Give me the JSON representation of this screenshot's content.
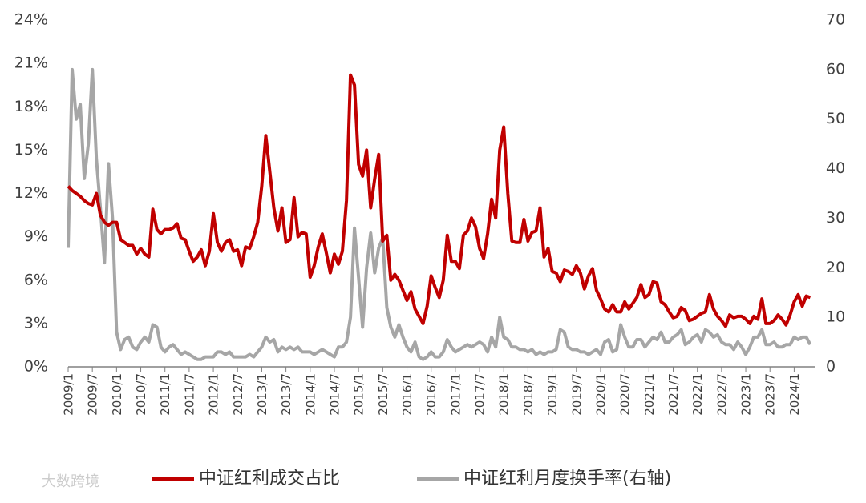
{
  "chart_data": {
    "type": "line",
    "watermark": "大数跨境",
    "categories": [
      "2009/1",
      null,
      null,
      null,
      null,
      null,
      "2009/7",
      null,
      null,
      null,
      null,
      null,
      "2010/1",
      null,
      null,
      null,
      null,
      null,
      "2010/7",
      null,
      null,
      null,
      null,
      null,
      "2011/1",
      null,
      null,
      null,
      null,
      null,
      "2011/7",
      null,
      null,
      null,
      null,
      null,
      "2012/1",
      null,
      null,
      null,
      null,
      null,
      "2012/7",
      null,
      null,
      null,
      null,
      null,
      "2013/1",
      null,
      null,
      null,
      null,
      null,
      "2013/7",
      null,
      null,
      null,
      null,
      null,
      "2014/1",
      null,
      null,
      null,
      null,
      null,
      "2014/7",
      null,
      null,
      null,
      null,
      null,
      "2015/1",
      null,
      null,
      null,
      null,
      null,
      "2015/7",
      null,
      null,
      null,
      null,
      null,
      "2016/1",
      null,
      null,
      null,
      null,
      null,
      "2016/7",
      null,
      null,
      null,
      null,
      null,
      "2017/1",
      null,
      null,
      null,
      null,
      null,
      "2017/7",
      null,
      null,
      null,
      null,
      null,
      "2018/1",
      null,
      null,
      null,
      null,
      null,
      "2018/7",
      null,
      null,
      null,
      null,
      null,
      "2019/1",
      null,
      null,
      null,
      null,
      null,
      "2019/7",
      null,
      null,
      null,
      null,
      null,
      "2020/1",
      null,
      null,
      null,
      null,
      null,
      "2020/7",
      null,
      null,
      null,
      null,
      null,
      "2021/1",
      null,
      null,
      null,
      null,
      null,
      "2021/7",
      null,
      null,
      null,
      null,
      null,
      "2022/1",
      null,
      null,
      null,
      null,
      null,
      "2022/7",
      null,
      null,
      null,
      null,
      null,
      "2023/1",
      null,
      null,
      null,
      null,
      null,
      "2023/7",
      null,
      null,
      null,
      null,
      null,
      "2024/1",
      null,
      null,
      null,
      null
    ],
    "series": [
      {
        "name": "中证红利成交占比",
        "color": "#c00000",
        "values": [
          12.5,
          12.2,
          12.0,
          11.8,
          11.5,
          11.3,
          11.2,
          12.0,
          10.5,
          10.0,
          9.8,
          10.0,
          10.0,
          8.8,
          8.6,
          8.4,
          8.4,
          7.8,
          8.2,
          7.8,
          7.6,
          10.9,
          9.5,
          9.2,
          9.5,
          9.5,
          9.6,
          9.9,
          8.9,
          8.8,
          8.0,
          7.3,
          7.6,
          8.1,
          7.0,
          8.0,
          10.6,
          8.6,
          8.0,
          8.6,
          8.8,
          8.0,
          8.1,
          7.0,
          8.3,
          8.2,
          9.0,
          10.0,
          12.5,
          16.0,
          13.5,
          11.0,
          9.4,
          11.0,
          8.6,
          8.8,
          11.7,
          9.0,
          9.3,
          9.2,
          6.2,
          7.0,
          8.3,
          9.2,
          7.9,
          6.5,
          7.8,
          7.1,
          8.0,
          11.5,
          20.2,
          19.5,
          14.0,
          13.2,
          15.0,
          11.0,
          13.0,
          14.7,
          8.7,
          9.1,
          6.0,
          6.4,
          6.0,
          5.3,
          4.6,
          5.2,
          4.0,
          3.5,
          3.0,
          4.2,
          6.3,
          5.5,
          4.8,
          6.0,
          9.1,
          7.3,
          7.3,
          6.8,
          9.1,
          9.4,
          10.3,
          9.7,
          8.2,
          7.5,
          9.2,
          11.6,
          10.3,
          15.0,
          16.6,
          12.0,
          8.7,
          8.6,
          8.6,
          10.2,
          8.7,
          9.3,
          9.4,
          11.0,
          7.6,
          8.2,
          6.6,
          6.5,
          5.9,
          6.7,
          6.6,
          6.4,
          7.0,
          6.5,
          5.4,
          6.3,
          6.8,
          5.3,
          4.7,
          4.0,
          3.8,
          4.3,
          3.8,
          3.8,
          4.5,
          4.0,
          4.4,
          4.8,
          5.7,
          4.8,
          5.0,
          5.9,
          5.8,
          4.5,
          4.3,
          3.8,
          3.4,
          3.5,
          4.1,
          3.9,
          3.2,
          3.3,
          3.5,
          3.7,
          3.8,
          5.0,
          4.0,
          3.5,
          3.2,
          2.8,
          3.6,
          3.4,
          3.5,
          3.5,
          3.3,
          3.0,
          3.5,
          3.3,
          4.7,
          3.0,
          3.0,
          3.2,
          3.6,
          3.3,
          2.9,
          3.6,
          4.5,
          5.0,
          4.2,
          4.9,
          4.8
        ]
      },
      {
        "name": "中证红利月度换手率(右轴)",
        "color": "#a6a6a6",
        "axis": "y2",
        "values": [
          24,
          60,
          50,
          53,
          38,
          45,
          60,
          42,
          32,
          21,
          41,
          30,
          7,
          3.5,
          5.5,
          6,
          4,
          3.5,
          5,
          6,
          5,
          8.5,
          8,
          4,
          3,
          4,
          4.5,
          3.5,
          2.5,
          3,
          2.5,
          2,
          1.5,
          1.5,
          2,
          2,
          2,
          3,
          3,
          2.5,
          3,
          2,
          2,
          2,
          2,
          2.5,
          2,
          3,
          4,
          6,
          5,
          5.5,
          3,
          4,
          3.5,
          4,
          3.5,
          4,
          3,
          3,
          3,
          2.5,
          3,
          3.5,
          3,
          2.5,
          2,
          4,
          4,
          5,
          10,
          28,
          18,
          8,
          20,
          27,
          19,
          24,
          26,
          12,
          8,
          6,
          8.5,
          6,
          4,
          3,
          5,
          2,
          1.5,
          2,
          3,
          2,
          2,
          3,
          5.5,
          4,
          3,
          3.5,
          4,
          4.5,
          4,
          4.5,
          5,
          4.5,
          3,
          6,
          4,
          10,
          6,
          5.5,
          4,
          4,
          3.5,
          3.5,
          3,
          3.5,
          2.5,
          3,
          2.5,
          3,
          3,
          3.5,
          7.5,
          7,
          4,
          3.5,
          3.5,
          3,
          3,
          2.5,
          3,
          3.5,
          2.5,
          5,
          5.5,
          3,
          3.5,
          8.5,
          6,
          4,
          4,
          5.5,
          5.5,
          4,
          5,
          6,
          5.5,
          7,
          5,
          5,
          6,
          6.5,
          7.5,
          4.5,
          5,
          6,
          6.5,
          5,
          7.5,
          7,
          6,
          6.5,
          5,
          4.5,
          4.5,
          3.5,
          5,
          4,
          2.5,
          4,
          6,
          6,
          7.5,
          4.5,
          4.5,
          5,
          4,
          4,
          4.5,
          4.5,
          6,
          5.5,
          6,
          6,
          4.5
        ]
      }
    ],
    "ylim": [
      0,
      24
    ],
    "yticks": [
      {
        "value": 0,
        "label": "0%"
      },
      {
        "value": 3,
        "label": "3%"
      },
      {
        "value": 6,
        "label": "6%"
      },
      {
        "value": 9,
        "label": "9%"
      },
      {
        "value": 12,
        "label": "12%"
      },
      {
        "value": 15,
        "label": "15%"
      },
      {
        "value": 18,
        "label": "18%"
      },
      {
        "value": 21,
        "label": "21%"
      },
      {
        "value": 24,
        "label": "24%"
      }
    ],
    "y2lim": [
      0,
      70
    ],
    "y2ticks": [
      0,
      10,
      20,
      30,
      40,
      50,
      60,
      70
    ],
    "legend": "bottom"
  }
}
